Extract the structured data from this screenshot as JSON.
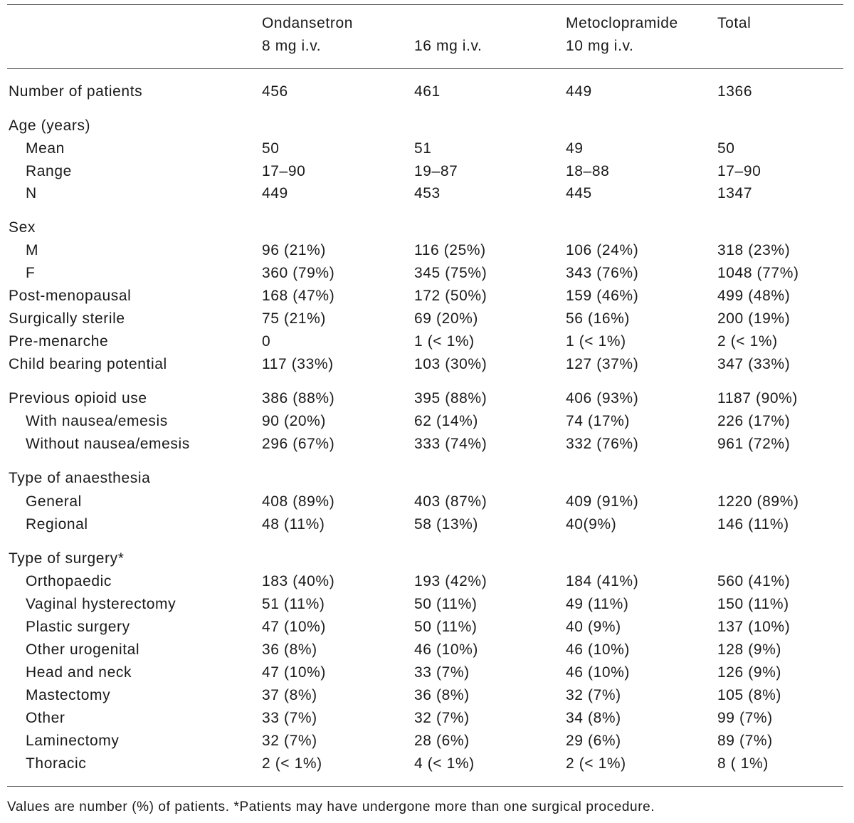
{
  "header": {
    "ondansetron_label": "Ondansetron",
    "ondansetron_8mg": "8 mg i.v.",
    "ondansetron_16mg": "16 mg i.v.",
    "metoclopramide_label": "Metoclopramide",
    "metoclopramide_10mg": "10 mg i.v.",
    "total_label": "Total"
  },
  "rows": [
    {
      "label": "Number of patients",
      "indent": false,
      "values": [
        "456",
        "461",
        "449",
        "1366"
      ]
    },
    {
      "label": "Age (years)",
      "indent": false,
      "values": [
        "",
        "",
        "",
        ""
      ]
    },
    {
      "label": "Mean",
      "indent": true,
      "values": [
        "50",
        "51",
        "49",
        "50"
      ]
    },
    {
      "label": "Range",
      "indent": true,
      "values": [
        "17–90",
        "19–87",
        "18–88",
        "17–90"
      ]
    },
    {
      "label": "N",
      "indent": true,
      "values": [
        "449",
        "453",
        "445",
        "1347"
      ]
    },
    {
      "label": "Sex",
      "indent": false,
      "values": [
        "",
        "",
        "",
        ""
      ]
    },
    {
      "label": "M",
      "indent": true,
      "values": [
        "96 (21%)",
        "116 (25%)",
        "106 (24%)",
        "318 (23%)"
      ]
    },
    {
      "label": "F",
      "indent": true,
      "values": [
        "360 (79%)",
        "345 (75%)",
        "343 (76%)",
        "1048 (77%)"
      ]
    },
    {
      "label": "Post-menopausal",
      "indent": false,
      "values": [
        "168 (47%)",
        "172 (50%)",
        "159 (46%)",
        "499 (48%)"
      ]
    },
    {
      "label": "Surgically sterile",
      "indent": false,
      "values": [
        "75 (21%)",
        "69 (20%)",
        "56 (16%)",
        "200 (19%)"
      ]
    },
    {
      "label": "Pre-menarche",
      "indent": false,
      "values": [
        "0",
        "1 (< 1%)",
        "1 (< 1%)",
        "2 (< 1%)"
      ]
    },
    {
      "label": "Child bearing potential",
      "indent": false,
      "values": [
        "117 (33%)",
        "103 (30%)",
        "127 (37%)",
        "347 (33%)"
      ]
    },
    {
      "label": "Previous opioid use",
      "indent": false,
      "values": [
        "386 (88%)",
        "395 (88%)",
        "406 (93%)",
        "1187 (90%)"
      ]
    },
    {
      "label": "With nausea/emesis",
      "indent": true,
      "values": [
        "90 (20%)",
        "62 (14%)",
        "74 (17%)",
        "226 (17%)"
      ]
    },
    {
      "label": "Without nausea/emesis",
      "indent": true,
      "values": [
        "296 (67%)",
        "333 (74%)",
        "332 (76%)",
        "961 (72%)"
      ]
    },
    {
      "label": "Type of anaesthesia",
      "indent": false,
      "values": [
        "",
        "",
        "",
        ""
      ]
    },
    {
      "label": "General",
      "indent": true,
      "values": [
        "408 (89%)",
        "403 (87%)",
        "409 (91%)",
        "1220 (89%)"
      ]
    },
    {
      "label": "Regional",
      "indent": true,
      "values": [
        "48 (11%)",
        "58 (13%)",
        "40(9%)",
        "146 (11%)"
      ]
    },
    {
      "label": "Type of surgery*",
      "indent": false,
      "values": [
        "",
        "",
        "",
        ""
      ]
    },
    {
      "label": "Orthopaedic",
      "indent": true,
      "values": [
        "183 (40%)",
        "193 (42%)",
        "184 (41%)",
        "560 (41%)"
      ]
    },
    {
      "label": "Vaginal hysterectomy",
      "indent": true,
      "values": [
        "51 (11%)",
        "50 (11%)",
        "49 (11%)",
        "150 (11%)"
      ]
    },
    {
      "label": "Plastic surgery",
      "indent": true,
      "values": [
        "47 (10%)",
        "50 (11%)",
        "40 (9%)",
        "137 (10%)"
      ]
    },
    {
      "label": "Other urogenital",
      "indent": true,
      "values": [
        "36 (8%)",
        "46 (10%)",
        "46 (10%)",
        "128 (9%)"
      ]
    },
    {
      "label": "Head and neck",
      "indent": true,
      "values": [
        "47 (10%)",
        "33 (7%)",
        "46 (10%)",
        "126 (9%)"
      ]
    },
    {
      "label": "Mastectomy",
      "indent": true,
      "values": [
        "37 (8%)",
        "36 (8%)",
        "32 (7%)",
        "105 (8%)"
      ]
    },
    {
      "label": "Other",
      "indent": true,
      "values": [
        "33 (7%)",
        "32 (7%)",
        "34 (8%)",
        "99 (7%)"
      ]
    },
    {
      "label": "Laminectomy",
      "indent": true,
      "values": [
        "32 (7%)",
        "28 (6%)",
        "29 (6%)",
        "89 (7%)"
      ]
    },
    {
      "label": "Thoracic",
      "indent": true,
      "values": [
        "2 (< 1%)",
        "4 (< 1%)",
        "2 (< 1%)",
        "8 ( 1%)"
      ]
    }
  ],
  "footnote": "Values are number (%) of patients. *Patients may have undergone more than one surgical procedure."
}
